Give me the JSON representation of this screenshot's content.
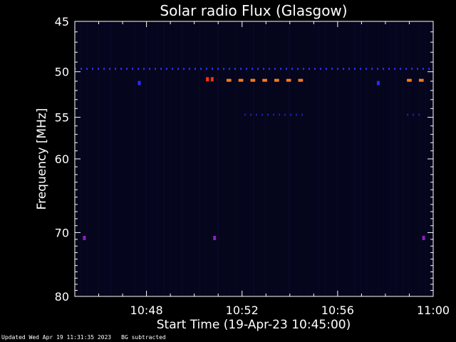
{
  "chart_data": {
    "type": "heatmap",
    "title": "Solar radio Flux (Glasgow)",
    "xlabel": "Start Time (19-Apr-23 10:45:00)",
    "ylabel": "Frequency [MHz]",
    "xlim_minutes": [
      0,
      15
    ],
    "ylim_mhz": [
      45,
      80
    ],
    "y_scale": "log",
    "x_ticks": [
      {
        "label": "10:48",
        "minute": 3
      },
      {
        "label": "10:52",
        "minute": 7
      },
      {
        "label": "10:56",
        "minute": 11
      },
      {
        "label": "11:00",
        "minute": 15
      }
    ],
    "y_ticks": [
      45,
      50,
      55,
      60,
      70,
      80
    ],
    "colors": {
      "background": "#000000",
      "plot_background": "#05051c",
      "faint": "#0d0d3a",
      "band": "#2a2aff",
      "hot": "#ff7a20",
      "red": "#ff3010",
      "purple": "#8a20c0"
    },
    "features": [
      {
        "kind": "dashed-line",
        "freq_mhz": 49.7,
        "start_min": 0,
        "end_min": 15,
        "color": "#2a2aff"
      },
      {
        "kind": "dashed-line",
        "freq_mhz": 54.7,
        "start_min": 7.1,
        "end_min": 9.6,
        "color": "#2020a0"
      },
      {
        "kind": "dashed-line",
        "freq_mhz": 54.7,
        "start_min": 13.9,
        "end_min": 14.6,
        "color": "#2020a0"
      },
      {
        "kind": "segments",
        "freq_mhz": 50.9,
        "color": "#ff7a20",
        "starts_min": [
          6.35,
          6.85,
          7.35,
          7.85,
          8.35,
          8.85,
          9.35,
          13.9,
          14.4
        ],
        "width_min": 0.2
      },
      {
        "kind": "point",
        "freq_mhz": 50.8,
        "min": 5.55,
        "color": "#ff3010"
      },
      {
        "kind": "point",
        "freq_mhz": 50.8,
        "min": 5.75,
        "color": "#ff3010"
      },
      {
        "kind": "point",
        "freq_mhz": 51.2,
        "min": 2.7,
        "color": "#2a2aff"
      },
      {
        "kind": "point",
        "freq_mhz": 51.2,
        "min": 12.7,
        "color": "#2a2aff"
      },
      {
        "kind": "point",
        "freq_mhz": 70.8,
        "min": 0.4,
        "color": "#8a20c0"
      },
      {
        "kind": "point",
        "freq_mhz": 70.8,
        "min": 5.85,
        "color": "#8a20c0"
      },
      {
        "kind": "point",
        "freq_mhz": 70.8,
        "min": 14.6,
        "color": "#8a20c0"
      }
    ]
  },
  "footer": {
    "updated": "Updated Wed Apr 19 11:31:35 2023",
    "note": "BG subtracted"
  }
}
